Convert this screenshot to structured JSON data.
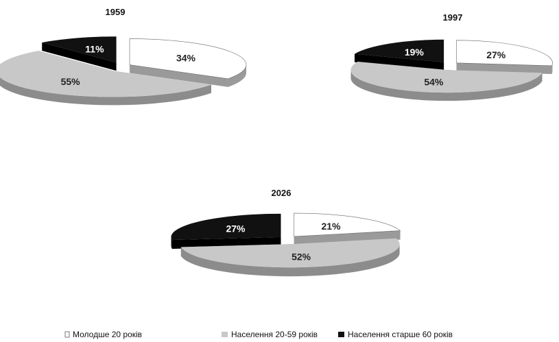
{
  "chart_data": {
    "type": "pie",
    "style": "3d-exploded",
    "categories": [
      "Молодше 20 років",
      "Населення 20-59 років",
      "Населення старше 60 років"
    ],
    "colors": {
      "Молодше 20 років": "#ffffff",
      "Населення 20-59 років": "#c8c8c8",
      "Населення старше 60 років": "#111111"
    },
    "legend_position": "bottom",
    "charts": [
      {
        "title": "1959",
        "values": [
          34,
          55,
          11
        ],
        "labels": [
          "34%",
          "55%",
          "11%"
        ]
      },
      {
        "title": "1997",
        "values": [
          27,
          54,
          19
        ],
        "labels": [
          "27%",
          "54%",
          "19%"
        ]
      },
      {
        "title": "2026",
        "values": [
          21,
          52,
          27
        ],
        "labels": [
          "21%",
          "52%",
          "27%"
        ]
      }
    ]
  }
}
